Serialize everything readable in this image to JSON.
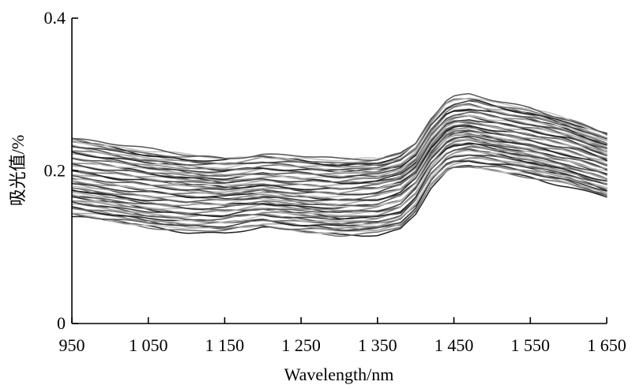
{
  "chart_data": {
    "type": "line",
    "title": "",
    "xlabel": "Wavelength/nm",
    "ylabel": "吸光值/%",
    "xlim": [
      950,
      1650
    ],
    "ylim": [
      0,
      0.4
    ],
    "xticks": [
      950,
      1050,
      1150,
      1250,
      1350,
      1450,
      1550,
      1650
    ],
    "xtick_labels": [
      "950",
      "1 050",
      "1 150",
      "1 250",
      "1 350",
      "1 450",
      "1 550",
      "1 650"
    ],
    "yticks": [
      0,
      0.2,
      0.4
    ],
    "ytick_labels": [
      "0",
      "0.2",
      "0.4"
    ],
    "grid": false,
    "legend": "none",
    "series_count": 60,
    "series_envelope": {
      "x": [
        950,
        1000,
        1050,
        1100,
        1150,
        1200,
        1250,
        1300,
        1350,
        1380,
        1400,
        1420,
        1440,
        1450,
        1470,
        1500,
        1550,
        1600,
        1650
      ],
      "upper": [
        0.244,
        0.235,
        0.227,
        0.221,
        0.218,
        0.222,
        0.218,
        0.214,
        0.216,
        0.224,
        0.238,
        0.27,
        0.292,
        0.297,
        0.299,
        0.291,
        0.281,
        0.268,
        0.25
      ],
      "lower": [
        0.14,
        0.133,
        0.126,
        0.121,
        0.12,
        0.125,
        0.119,
        0.116,
        0.118,
        0.125,
        0.144,
        0.178,
        0.198,
        0.202,
        0.204,
        0.2,
        0.192,
        0.181,
        0.166
      ]
    },
    "colors": [
      "#202020",
      "#3a3a3a",
      "#555555",
      "#707070",
      "#8a8a8a",
      "#a5a5a5",
      "#c0c0c0"
    ]
  }
}
